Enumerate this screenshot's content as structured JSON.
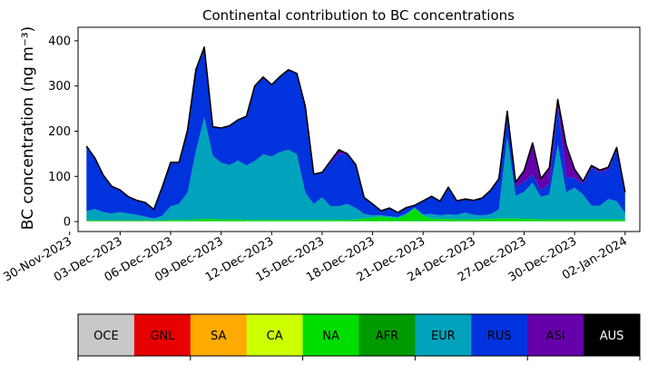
{
  "chart_data": {
    "type": "area",
    "stacked": true,
    "title": "Continental contribution to BC concentrations",
    "xlabel": "",
    "ylabel": "BC concentration (ng m⁻³)",
    "ylim": [
      -22,
      430
    ],
    "yticks": [
      0,
      100,
      200,
      300,
      400
    ],
    "xlim": [
      "2023-11-30T12:00",
      "2024-01-02T21:00"
    ],
    "xticks": [
      "30-Nov-2023",
      "03-Dec-2023",
      "06-Dec-2023",
      "09-Dec-2023",
      "12-Dec-2023",
      "15-Dec-2023",
      "18-Dec-2023",
      "21-Dec-2023",
      "24-Dec-2023",
      "27-Dec-2023",
      "30-Dec-2023",
      "02-Jan-2024"
    ],
    "x": [
      "2023-12-01T00:00",
      "2023-12-01T12:00",
      "2023-12-02T00:00",
      "2023-12-02T12:00",
      "2023-12-03T00:00",
      "2023-12-03T12:00",
      "2023-12-04T00:00",
      "2023-12-04T12:00",
      "2023-12-05T00:00",
      "2023-12-05T12:00",
      "2023-12-06T00:00",
      "2023-12-06T12:00",
      "2023-12-07T00:00",
      "2023-12-07T12:00",
      "2023-12-08T00:00",
      "2023-12-08T12:00",
      "2023-12-09T00:00",
      "2023-12-09T12:00",
      "2023-12-10T00:00",
      "2023-12-10T12:00",
      "2023-12-11T00:00",
      "2023-12-11T12:00",
      "2023-12-12T00:00",
      "2023-12-12T12:00",
      "2023-12-13T00:00",
      "2023-12-13T12:00",
      "2023-12-14T00:00",
      "2023-12-14T12:00",
      "2023-12-15T00:00",
      "2023-12-15T12:00",
      "2023-12-16T00:00",
      "2023-12-16T12:00",
      "2023-12-17T00:00",
      "2023-12-17T12:00",
      "2023-12-18T00:00",
      "2023-12-18T12:00",
      "2023-12-19T00:00",
      "2023-12-19T12:00",
      "2023-12-20T00:00",
      "2023-12-20T12:00",
      "2023-12-21T00:00",
      "2023-12-21T12:00",
      "2023-12-22T00:00",
      "2023-12-22T12:00",
      "2023-12-23T00:00",
      "2023-12-23T12:00",
      "2023-12-24T00:00",
      "2023-12-24T12:00",
      "2023-12-25T00:00",
      "2023-12-25T12:00",
      "2023-12-26T00:00",
      "2023-12-26T12:00",
      "2023-12-27T00:00",
      "2023-12-27T12:00",
      "2023-12-28T00:00",
      "2023-12-28T12:00",
      "2023-12-29T00:00",
      "2023-12-29T12:00",
      "2023-12-30T00:00",
      "2023-12-30T12:00",
      "2023-12-31T00:00",
      "2023-12-31T12:00",
      "2024-01-01T00:00",
      "2024-01-01T12:00",
      "2024-01-02T00:00"
    ],
    "series": [
      {
        "name": "OCE",
        "color": "#c8c8c8",
        "values": [
          1,
          1,
          1,
          1,
          1,
          1,
          1,
          1,
          1,
          1,
          1,
          1,
          1,
          1,
          1,
          1,
          1,
          1,
          1,
          1,
          1,
          1,
          1,
          1,
          1,
          1,
          1,
          1,
          1,
          1,
          1,
          1,
          1,
          1,
          1,
          1,
          1,
          1,
          1,
          1,
          1,
          1,
          1,
          1,
          1,
          1,
          1,
          1,
          1,
          1,
          1,
          1,
          1,
          1,
          1,
          1,
          1,
          1,
          1,
          1,
          1,
          1,
          1,
          1,
          1
        ]
      },
      {
        "name": "GNL",
        "color": "#e60000",
        "values": [
          0,
          0,
          0,
          0,
          0,
          0,
          0,
          0,
          0,
          0,
          0,
          0,
          0,
          0,
          0,
          0,
          0,
          0,
          0,
          0,
          0,
          0,
          0,
          0,
          0,
          0,
          0,
          0,
          0,
          0,
          0,
          0,
          0,
          0,
          0,
          0,
          0,
          0,
          0,
          0,
          0,
          0,
          0,
          0,
          0,
          0,
          0,
          0,
          0,
          0,
          0,
          0,
          0,
          0,
          0,
          0,
          0,
          0,
          0,
          0,
          0,
          0,
          0,
          0,
          0
        ]
      },
      {
        "name": "SA",
        "color": "#ffaa00",
        "values": [
          0,
          0,
          0,
          0,
          0,
          0,
          0,
          0,
          0,
          0,
          0,
          0,
          0,
          0,
          0,
          0,
          0,
          0,
          0,
          0,
          0,
          0,
          0,
          0,
          0,
          0,
          0,
          0,
          0,
          0,
          0,
          0,
          0,
          0,
          0,
          0,
          0,
          0,
          0,
          0,
          0,
          0,
          0,
          0,
          0,
          0,
          0,
          0,
          0,
          0,
          0,
          0,
          0,
          0,
          0,
          0,
          0,
          0,
          0,
          0,
          0,
          0,
          0,
          0,
          0
        ]
      },
      {
        "name": "CA",
        "color": "#ccff00",
        "values": [
          0,
          0,
          0,
          0,
          0,
          0,
          0,
          0,
          0,
          0,
          0,
          0,
          0,
          0,
          0,
          0,
          0,
          0,
          0,
          0,
          0,
          0,
          0,
          0,
          0,
          0,
          0,
          0,
          0,
          0,
          0,
          0,
          0,
          0,
          0,
          0,
          0,
          0,
          0,
          0,
          0,
          0,
          0,
          0,
          0,
          0,
          0,
          0,
          0,
          0,
          0,
          0,
          0,
          0,
          0,
          0,
          0,
          0,
          0,
          0,
          0,
          0,
          0,
          0,
          0
        ]
      },
      {
        "name": "NA",
        "color": "#00dd00",
        "values": [
          2,
          2,
          2,
          2,
          2,
          2,
          2,
          2,
          2,
          2,
          3,
          3,
          3,
          4,
          5,
          5,
          4,
          4,
          4,
          3,
          3,
          3,
          3,
          3,
          3,
          3,
          3,
          3,
          3,
          3,
          3,
          3,
          4,
          6,
          8,
          10,
          8,
          6,
          14,
          28,
          12,
          6,
          5,
          5,
          4,
          4,
          4,
          5,
          5,
          6,
          6,
          6,
          5,
          5,
          4,
          4,
          4,
          4,
          4,
          4,
          4,
          4,
          4,
          4,
          3
        ]
      },
      {
        "name": "AFR",
        "color": "#009900",
        "values": [
          0,
          0,
          0,
          0,
          0,
          0,
          0,
          0,
          0,
          0,
          0,
          0,
          0,
          0,
          0,
          0,
          0,
          0,
          0,
          0,
          0,
          0,
          0,
          0,
          0,
          0,
          0,
          0,
          0,
          0,
          0,
          0,
          0,
          0,
          0,
          0,
          0,
          0,
          0,
          0,
          0,
          0,
          0,
          0,
          0,
          0,
          0,
          0,
          0,
          0,
          0,
          0,
          0,
          0,
          0,
          0,
          0,
          0,
          0,
          0,
          0,
          0,
          0,
          0,
          0
        ]
      },
      {
        "name": "EUR",
        "color": "#00a3bb",
        "values": [
          20,
          25,
          18,
          15,
          18,
          15,
          12,
          8,
          4,
          10,
          30,
          35,
          60,
          150,
          225,
          140,
          125,
          120,
          130,
          120,
          130,
          145,
          140,
          150,
          155,
          145,
          60,
          35,
          50,
          30,
          30,
          35,
          25,
          10,
          5,
          3,
          3,
          3,
          3,
          2,
          3,
          10,
          8,
          10,
          10,
          15,
          10,
          8,
          10,
          20,
          180,
          50,
          60,
          80,
          50,
          55,
          165,
          60,
          70,
          55,
          30,
          30,
          45,
          40,
          15
        ]
      },
      {
        "name": "RUS",
        "color": "#0033dd",
        "values": [
          144,
          113,
          82,
          60,
          49,
          37,
          32,
          31,
          20,
          63,
          97,
          92,
          138,
          181,
          155,
          64,
          77,
          87,
          90,
          109,
          166,
          171,
          159,
          167,
          177,
          179,
          191,
          66,
          55,
          95,
          115,
          111,
          96,
          36,
          25,
          10,
          18,
          10,
          13,
          5,
          30,
          39,
          31,
          60,
          31,
          30,
          32,
          38,
          53,
          68,
          52,
          20,
          22,
          18,
          15,
          24,
          85,
          34,
          21,
          24,
          84,
          74,
          65,
          114,
          41
        ]
      },
      {
        "name": "ASI",
        "color": "#6600aa",
        "values": [
          0,
          0,
          0,
          0,
          0,
          0,
          0,
          0,
          0,
          0,
          0,
          0,
          0,
          0,
          0,
          0,
          0,
          0,
          0,
          0,
          0,
          0,
          0,
          0,
          0,
          0,
          0,
          0,
          0,
          5,
          10,
          0,
          0,
          0,
          0,
          0,
          0,
          0,
          0,
          0,
          0,
          0,
          0,
          0,
          0,
          0,
          0,
          0,
          0,
          0,
          5,
          10,
          25,
          70,
          25,
          35,
          15,
          70,
          20,
          5,
          5,
          5,
          5,
          5,
          5
        ]
      },
      {
        "name": "AUS",
        "color": "#000000",
        "values": [
          0,
          0,
          0,
          0,
          0,
          0,
          0,
          0,
          0,
          0,
          0,
          0,
          0,
          0,
          0,
          0,
          0,
          0,
          0,
          0,
          0,
          0,
          0,
          0,
          0,
          0,
          0,
          0,
          0,
          0,
          0,
          0,
          0,
          0,
          0,
          0,
          0,
          0,
          0,
          0,
          0,
          0,
          0,
          0,
          0,
          0,
          0,
          0,
          0,
          0,
          0,
          0,
          0,
          0,
          0,
          0,
          0,
          0,
          0,
          0,
          0,
          0,
          0,
          0,
          0
        ]
      }
    ],
    "total_line_color": "#000000",
    "grid": false,
    "legend": "bottom",
    "legend_text_colors": [
      "#000000",
      "#000000",
      "#000000",
      "#000000",
      "#000000",
      "#000000",
      "#000000",
      "#000000",
      "#000000",
      "#ffffff"
    ]
  }
}
